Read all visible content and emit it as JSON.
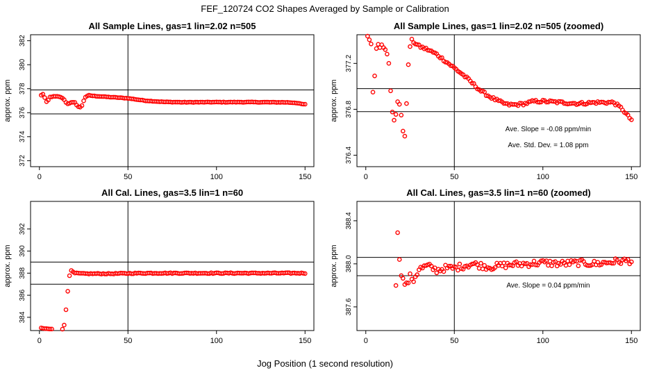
{
  "figure": {
    "title": "FEF_120724  CO2 Shapes Averaged by Sample or Calibration",
    "xlabel": "Jog Position (1 second resolution)",
    "marker_color": "#ff0000"
  },
  "chart_data": [
    {
      "type": "scatter",
      "title": "All Sample Lines, gas=1 lin=2.02 n=505",
      "xlabel": "",
      "ylabel": "approx. ppm",
      "xlim": [
        -5,
        155
      ],
      "ylim": [
        371.5,
        382.5
      ],
      "xticks": [
        0,
        50,
        100,
        150
      ],
      "yticks": [
        372,
        374,
        376,
        378,
        380,
        382
      ],
      "ytick_labels": [
        "372",
        "374",
        "376",
        "378",
        "380",
        "382"
      ],
      "hlines": [
        377.9,
        375.9
      ],
      "vline": 50,
      "annotations": [],
      "anchors": [
        [
          1,
          377.45
        ],
        [
          2,
          377.55
        ],
        [
          3,
          377.25
        ],
        [
          4,
          376.9
        ],
        [
          5,
          377.05
        ],
        [
          6,
          377.3
        ],
        [
          8,
          377.35
        ],
        [
          10,
          377.35
        ],
        [
          12,
          377.3
        ],
        [
          14,
          377.1
        ],
        [
          15,
          376.85
        ],
        [
          16,
          376.75
        ],
        [
          18,
          376.85
        ],
        [
          20,
          376.85
        ],
        [
          21,
          376.65
        ],
        [
          22,
          376.5
        ],
        [
          23,
          376.45
        ],
        [
          24,
          376.6
        ],
        [
          25,
          377.0
        ],
        [
          26,
          377.3
        ],
        [
          28,
          377.45
        ],
        [
          30,
          377.4
        ],
        [
          35,
          377.35
        ],
        [
          40,
          377.3
        ],
        [
          45,
          377.25
        ],
        [
          50,
          377.2
        ],
        [
          55,
          377.1
        ],
        [
          60,
          377.0
        ],
        [
          65,
          376.95
        ],
        [
          70,
          376.9
        ],
        [
          80,
          376.87
        ],
        [
          90,
          376.87
        ],
        [
          100,
          376.88
        ],
        [
          110,
          376.88
        ],
        [
          120,
          376.88
        ],
        [
          130,
          376.87
        ],
        [
          140,
          376.86
        ],
        [
          145,
          376.82
        ],
        [
          148,
          376.72
        ],
        [
          150,
          376.7
        ]
      ],
      "jitter": 0.02,
      "n": 150
    },
    {
      "type": "scatter",
      "title": "All Sample Lines, gas=1 lin=2.02 n=505 (zoomed)",
      "xlabel": "",
      "ylabel": "approx. ppm",
      "xlim": [
        -5,
        155
      ],
      "ylim": [
        376.3,
        377.45
      ],
      "xticks": [
        0,
        50,
        100,
        150
      ],
      "yticks": [
        376.4,
        376.8,
        377.2
      ],
      "ytick_labels": [
        "376.4",
        "376.8",
        "377.2"
      ],
      "hlines": [
        376.98,
        376.78
      ],
      "vline": 50,
      "annotations": [
        {
          "text": "Ave. Slope =  -0.08  ppm/min",
          "x": 103,
          "y": 376.61
        },
        {
          "text": "Ave. Std. Dev. =  1.08  ppm",
          "x": 103,
          "y": 376.47
        }
      ],
      "anchors": [
        [
          1,
          377.43
        ],
        [
          2,
          377.41
        ],
        [
          3,
          377.37
        ],
        [
          4,
          376.95
        ],
        [
          5,
          377.1
        ],
        [
          6,
          377.32
        ],
        [
          7,
          377.37
        ],
        [
          8,
          377.35
        ],
        [
          9,
          377.36
        ],
        [
          10,
          377.34
        ],
        [
          11,
          377.33
        ],
        [
          12,
          377.29
        ],
        [
          13,
          377.21
        ],
        [
          14,
          376.97
        ],
        [
          15,
          376.77
        ],
        [
          16,
          376.7
        ],
        [
          17,
          376.75
        ],
        [
          18,
          376.87
        ],
        [
          19,
          376.85
        ],
        [
          20,
          376.75
        ],
        [
          21,
          376.6
        ],
        [
          22,
          376.57
        ],
        [
          23,
          376.86
        ],
        [
          24,
          377.18
        ],
        [
          25,
          377.35
        ],
        [
          26,
          377.4
        ],
        [
          30,
          377.35
        ],
        [
          35,
          377.32
        ],
        [
          40,
          377.28
        ],
        [
          45,
          377.22
        ],
        [
          50,
          377.16
        ],
        [
          55,
          377.1
        ],
        [
          60,
          377.03
        ],
        [
          65,
          376.96
        ],
        [
          70,
          376.91
        ],
        [
          75,
          376.87
        ],
        [
          80,
          376.84
        ],
        [
          85,
          376.84
        ],
        [
          90,
          376.85
        ],
        [
          95,
          376.87
        ],
        [
          100,
          376.87
        ],
        [
          110,
          376.86
        ],
        [
          120,
          376.85
        ],
        [
          130,
          376.86
        ],
        [
          140,
          376.86
        ],
        [
          145,
          376.8
        ],
        [
          148,
          376.74
        ],
        [
          150,
          376.71
        ]
      ],
      "jitter": 0.012,
      "n": 150
    },
    {
      "type": "scatter",
      "title": "All Cal. Lines, gas=3.5 lin=1 n=60",
      "xlabel": "",
      "ylabel": "approx. ppm",
      "xlim": [
        -5,
        155
      ],
      "ylim": [
        382.8,
        394.5
      ],
      "xticks": [
        0,
        50,
        100,
        150
      ],
      "yticks": [
        384,
        386,
        388,
        390,
        392
      ],
      "ytick_labels": [
        "384",
        "386",
        "388",
        "390",
        "392"
      ],
      "hlines": [
        389.0,
        387.0
      ],
      "vline": 50,
      "annotations": [],
      "anchors": [
        [
          1,
          383.0
        ],
        [
          5,
          382.95
        ],
        [
          10,
          382.88
        ],
        [
          12,
          382.87
        ],
        [
          13,
          382.9
        ],
        [
          14,
          383.3
        ],
        [
          15,
          384.7
        ],
        [
          16,
          386.4
        ],
        [
          17,
          387.8
        ],
        [
          18,
          388.2
        ],
        [
          20,
          388.0
        ],
        [
          25,
          387.95
        ],
        [
          30,
          387.95
        ],
        [
          40,
          387.95
        ],
        [
          50,
          387.98
        ],
        [
          60,
          388.0
        ],
        [
          70,
          388.0
        ],
        [
          80,
          388.0
        ],
        [
          90,
          388.0
        ],
        [
          100,
          388.0
        ],
        [
          110,
          388.0
        ],
        [
          120,
          388.0
        ],
        [
          130,
          388.0
        ],
        [
          140,
          388.0
        ],
        [
          150,
          388.0
        ]
      ],
      "jitter": 0.04,
      "n": 150
    },
    {
      "type": "scatter",
      "title": "All Cal. Lines, gas=3.5 lin=1 n=60 (zoomed)",
      "xlabel": "",
      "ylabel": "approx. ppm",
      "xlim": [
        -5,
        155
      ],
      "ylim": [
        387.38,
        388.58
      ],
      "xticks": [
        0,
        50,
        100,
        150
      ],
      "yticks": [
        387.6,
        388.0,
        388.4
      ],
      "ytick_labels": [
        "387.6",
        "388.0",
        "388.4"
      ],
      "hlines": [
        388.06,
        387.89
      ],
      "vline": 50,
      "annotations": [
        {
          "text": "Ave. Slope =  0.04  ppm/min",
          "x": 103,
          "y": 387.78
        }
      ],
      "anchors": [
        [
          17,
          387.82
        ],
        [
          18,
          388.27
        ],
        [
          19,
          388.06
        ],
        [
          20,
          387.92
        ],
        [
          21,
          387.85
        ],
        [
          22,
          387.82
        ],
        [
          23,
          387.8
        ],
        [
          25,
          387.88
        ],
        [
          27,
          387.85
        ],
        [
          30,
          387.95
        ],
        [
          35,
          387.98
        ],
        [
          40,
          387.94
        ],
        [
          45,
          387.96
        ],
        [
          50,
          387.96
        ],
        [
          55,
          387.98
        ],
        [
          60,
          388.0
        ],
        [
          70,
          387.97
        ],
        [
          80,
          387.99
        ],
        [
          90,
          388.0
        ],
        [
          100,
          388.01
        ],
        [
          110,
          388.0
        ],
        [
          120,
          388.01
        ],
        [
          130,
          388.0
        ],
        [
          140,
          388.02
        ],
        [
          150,
          388.03
        ]
      ],
      "jitter": 0.03,
      "n": 134
    }
  ]
}
